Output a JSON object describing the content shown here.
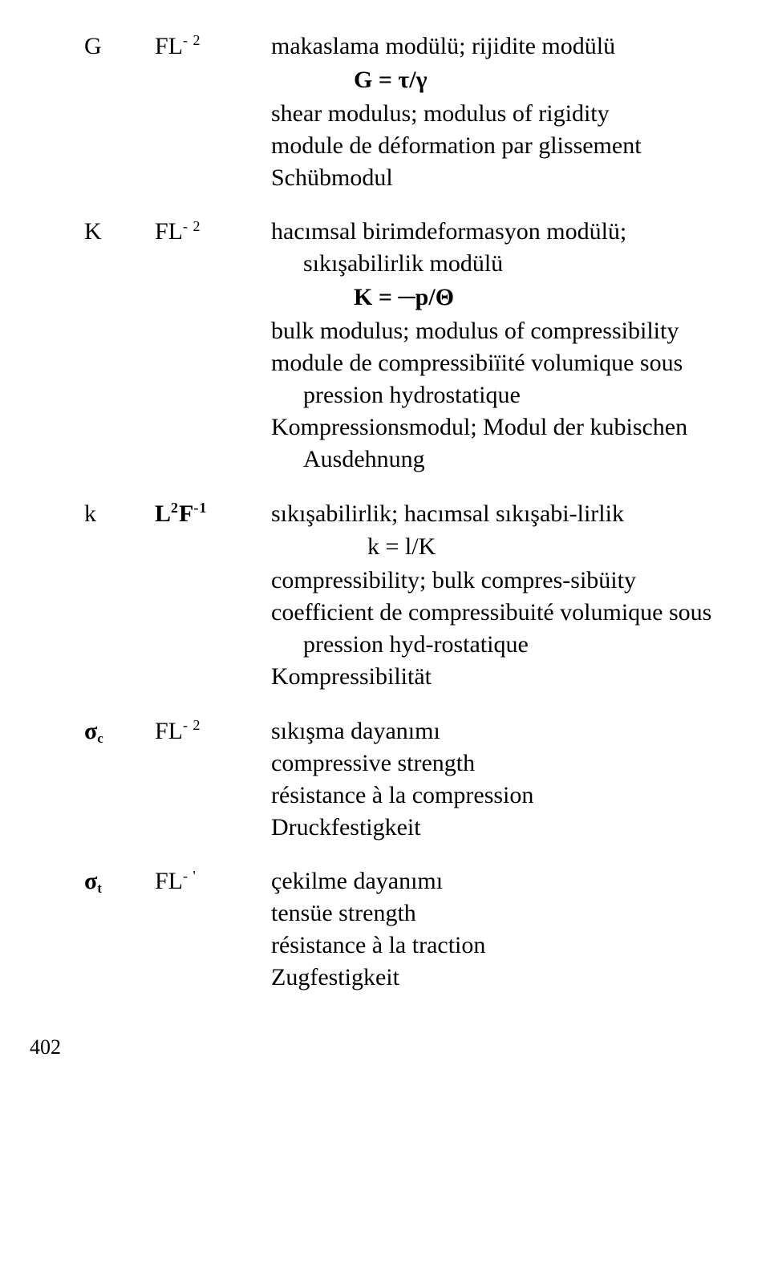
{
  "typography": {
    "font_family": "Times New Roman",
    "body_fontsize_pt": 22,
    "formula_fontsize_pt": 22,
    "background_color": "#ffffff",
    "text_color": "#000000"
  },
  "entries": [
    {
      "symbol": "G",
      "dimension_html": "FL<sup>-2</sup>",
      "dimension": "FL^-2",
      "formula": "G = τ/γ",
      "tr": "makaslama modülü; rijidite modülü",
      "en": "shear modulus; modulus of rigidity",
      "fr": "module de déformation par glissement",
      "de": "Schübmodul"
    },
    {
      "symbol": "K",
      "dimension_html": "FL<sup>-2</sup>",
      "dimension": "FL^-2",
      "formula": "K = ─p/Θ",
      "tr": "hacımsal birimdeformasyon modülü; sıkışabilirlik modülü",
      "en": "bulk modulus; modulus of compressibility",
      "fr": "module de compressibiïité volumique sous pression hydrostatique",
      "de": "Kompressionsmodul; Modul der kubischen Ausdehnung"
    },
    {
      "symbol": "k",
      "dimension_html": "L<sup>2</sup>F<sup>-1</sup>",
      "dimension": "L^2F^-1",
      "dimension_bold": true,
      "formula": "k = l/K",
      "tr": "sıkışabilirlik; hacımsal sıkışabilirlik",
      "en": "compressibility; bulk compres-sibüity",
      "fr": "coefficient de compressibuité volumique sous pression hyd-rostatique",
      "de": "Kompressibilität"
    },
    {
      "symbol": "σc",
      "symbol_sub": "c",
      "dimension_html": "FL<sup>-2</sup>",
      "dimension": "FL^-2",
      "tr": "sıkışma dayanımı",
      "en": "compressive strength",
      "fr": "résistance à la compression",
      "de": "Druckfestigkeit"
    },
    {
      "symbol": "σt",
      "symbol_sub": "t",
      "dimension_html": "FL<sup>-'</sup>",
      "dimension": "FL^-'",
      "tr": "çekilme dayanımı",
      "en": "tensüe strength",
      "fr": "résistance à la traction",
      "de": "Zugfestigkeit"
    }
  ],
  "page_number": "402"
}
